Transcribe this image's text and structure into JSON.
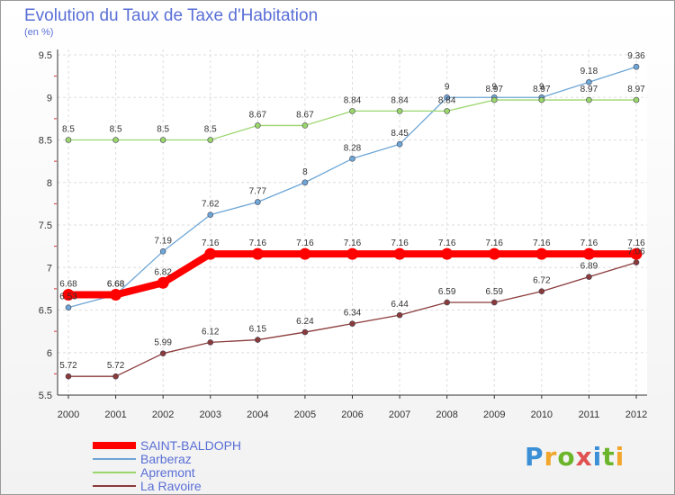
{
  "header": {
    "title": "Evolution du Taux de Taxe d'Habitation",
    "subtitle": "(en %)"
  },
  "logo": {
    "letters": [
      "P",
      "r",
      "o",
      "x",
      "i",
      "t",
      "i"
    ]
  },
  "chart_data": {
    "type": "line",
    "x": [
      "2000",
      "2001",
      "2002",
      "2003",
      "2004",
      "2005",
      "2006",
      "2007",
      "2008",
      "2009",
      "2010",
      "2011",
      "2012"
    ],
    "ylim": [
      5.5,
      9.5
    ],
    "yticks": [
      "5.5",
      "6",
      "6.5",
      "7",
      "7.5",
      "8",
      "8.5",
      "9",
      "9.5"
    ],
    "grid": true,
    "legend_position": "bottom-left",
    "series": [
      {
        "name": "SAINT-BALDOPH",
        "color": "#ff0000",
        "width": 8,
        "values": [
          6.68,
          6.68,
          6.82,
          7.16,
          7.16,
          7.16,
          7.16,
          7.16,
          7.16,
          7.16,
          7.16,
          7.16,
          7.16
        ]
      },
      {
        "name": "Barberaz",
        "color": "#6ea6d6",
        "width": 1.3,
        "values": [
          6.53,
          6.68,
          7.19,
          7.62,
          7.77,
          8,
          8.28,
          8.45,
          9,
          9,
          9,
          9.18,
          9.36
        ]
      },
      {
        "name": "Apremont",
        "color": "#9bd66b",
        "width": 1.3,
        "values": [
          8.5,
          8.5,
          8.5,
          8.5,
          8.67,
          8.67,
          8.84,
          8.84,
          8.84,
          8.97,
          8.97,
          8.97,
          8.97
        ]
      },
      {
        "name": "La Ravoire",
        "color": "#8b3a3a",
        "width": 1.3,
        "values": [
          5.72,
          5.72,
          5.99,
          6.12,
          6.15,
          6.24,
          6.34,
          6.44,
          6.59,
          6.59,
          6.72,
          6.89,
          7.06
        ]
      }
    ]
  }
}
